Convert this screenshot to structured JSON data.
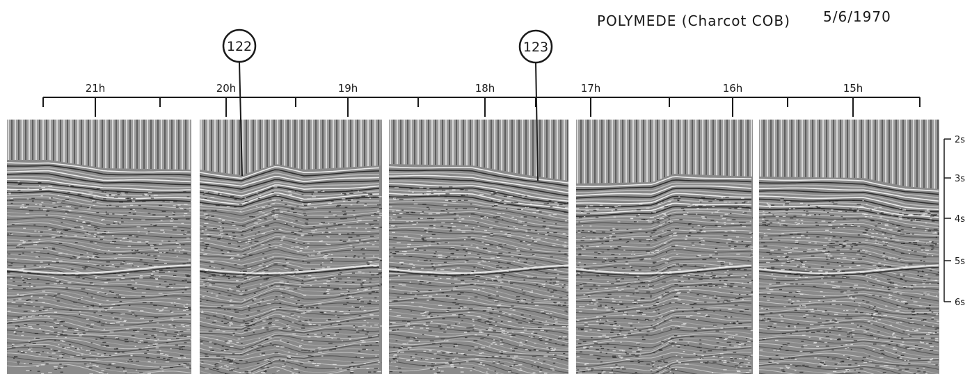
{
  "header": {
    "title": "POLYMEDE (Charcot COB)",
    "date": "5/6/1970"
  },
  "sites": [
    {
      "label": "122"
    },
    {
      "label": "123"
    }
  ],
  "time_axis": {
    "labels": [
      "21h",
      "20h",
      "19h",
      "18h",
      "17h",
      "16h",
      "15h"
    ]
  },
  "depth_axis": {
    "labels": [
      "2s",
      "3s",
      "4s",
      "5s",
      "6s"
    ]
  },
  "colors": {
    "ink": "#1a1a1a",
    "panel_base": "#8a8a8a",
    "paper": "#ffffff"
  }
}
